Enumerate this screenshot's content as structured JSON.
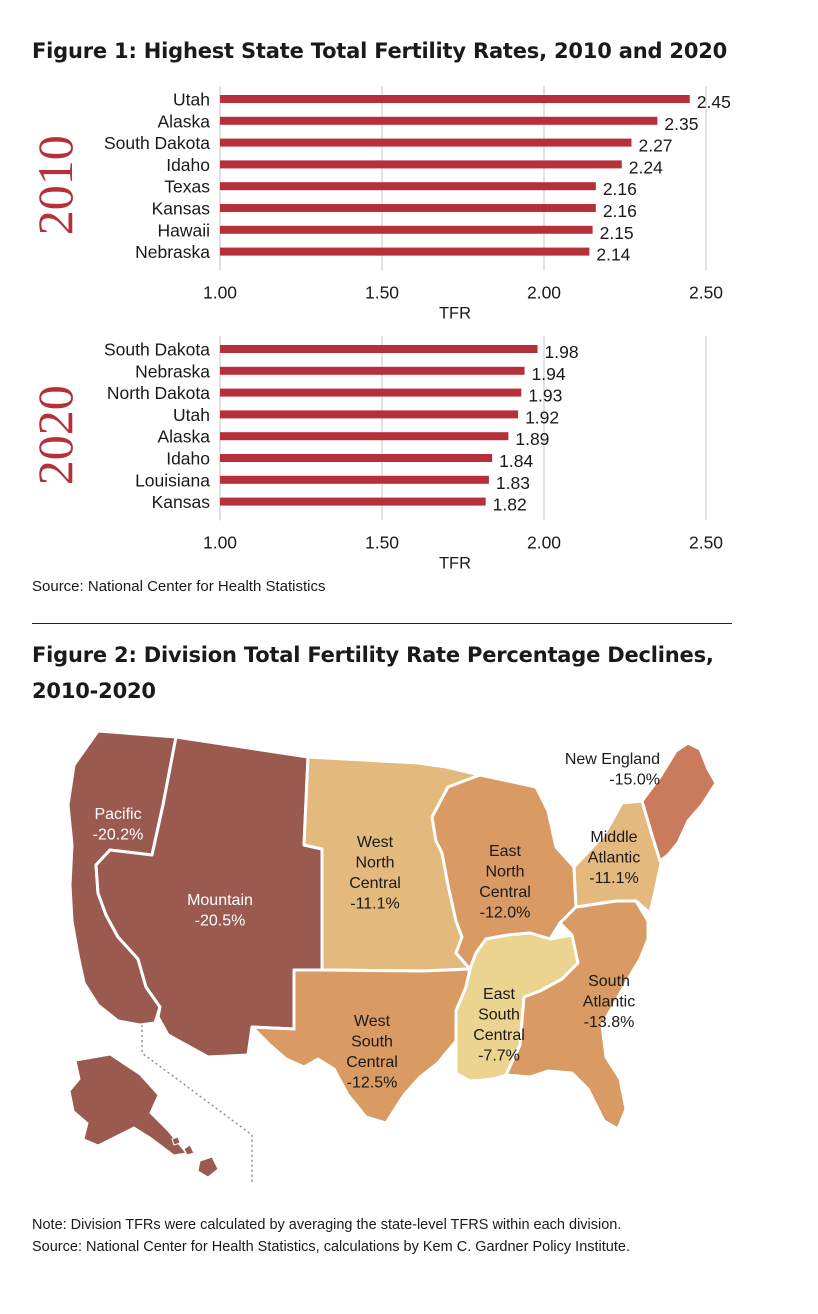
{
  "figure1": {
    "title": "Figure 1: Highest State Total Fertility Rates, 2010 and 2020",
    "source": "Source: National Center for Health Statistics"
  },
  "chart_data": [
    {
      "type": "bar",
      "orientation": "horizontal",
      "panel_label": "2010",
      "categories": [
        "Utah",
        "Alaska",
        "South Dakota",
        "Idaho",
        "Texas",
        "Kansas",
        "Hawaii",
        "Nebraska"
      ],
      "values": [
        2.45,
        2.35,
        2.27,
        2.24,
        2.16,
        2.16,
        2.15,
        2.14
      ],
      "value_labels": [
        "2.45",
        "2.35",
        "2.27",
        "2.24",
        "2.16",
        "2.16",
        "2.15",
        "2.14"
      ],
      "xlabel": "TFR",
      "xlim": [
        1.0,
        2.5
      ],
      "xticks": [
        1.0,
        1.5,
        2.0,
        2.5
      ],
      "xtick_labels": [
        "1.00",
        "1.50",
        "2.00",
        "2.50"
      ],
      "color": "#b5303a",
      "grid": true
    },
    {
      "type": "bar",
      "orientation": "horizontal",
      "panel_label": "2020",
      "categories": [
        "South Dakota",
        "Nebraska",
        "North Dakota",
        "Utah",
        "Alaska",
        "Idaho",
        "Louisiana",
        "Kansas"
      ],
      "values": [
        1.98,
        1.94,
        1.93,
        1.92,
        1.89,
        1.84,
        1.83,
        1.82
      ],
      "value_labels": [
        "1.98",
        "1.94",
        "1.93",
        "1.92",
        "1.89",
        "1.84",
        "1.83",
        "1.82"
      ],
      "xlabel": "TFR",
      "xlim": [
        1.0,
        2.5
      ],
      "xticks": [
        1.0,
        1.5,
        2.0,
        2.5
      ],
      "xtick_labels": [
        "1.00",
        "1.50",
        "2.00",
        "2.50"
      ],
      "color": "#b5303a",
      "grid": true
    }
  ],
  "figure2": {
    "title_line1": "Figure 2: Division Total Fertility Rate Percentage Declines,",
    "title_line2": "2010-2020",
    "divisions": [
      {
        "id": "pacific",
        "lines": [
          "Pacific",
          "-20.2%"
        ],
        "value": -20.2,
        "color": "#9b5a50",
        "text_color": "#ffffff"
      },
      {
        "id": "mountain",
        "lines": [
          "Mountain",
          "-20.5%"
        ],
        "value": -20.5,
        "color": "#9b5a50",
        "text_color": "#ffffff"
      },
      {
        "id": "west-north-central",
        "lines": [
          "West",
          "North",
          "Central",
          "-11.1%"
        ],
        "value": -11.1,
        "color": "#e3b97e",
        "text_color": "#1a1a1a"
      },
      {
        "id": "west-south-central",
        "lines": [
          "West",
          "South",
          "Central",
          "-12.5%"
        ],
        "value": -12.5,
        "color": "#d99a63",
        "text_color": "#1a1a1a"
      },
      {
        "id": "east-north-central",
        "lines": [
          "East",
          "North",
          "Central",
          "-12.0%"
        ],
        "value": -12.0,
        "color": "#d99a63",
        "text_color": "#1a1a1a"
      },
      {
        "id": "east-south-central",
        "lines": [
          "East",
          "South",
          "Central",
          "-7.7%"
        ],
        "value": -7.7,
        "color": "#ead48f",
        "text_color": "#1a1a1a"
      },
      {
        "id": "south-atlantic",
        "lines": [
          "South",
          "Atlantic",
          "-13.8%"
        ],
        "value": -13.8,
        "color": "#d99a63",
        "text_color": "#1a1a1a"
      },
      {
        "id": "middle-atlantic",
        "lines": [
          "Middle",
          "Atlantic",
          "-11.1%"
        ],
        "value": -11.1,
        "color": "#e3b97e",
        "text_color": "#1a1a1a"
      },
      {
        "id": "new-england",
        "lines": [
          "New England",
          "-15.0%"
        ],
        "value": -15.0,
        "color": "#c97b5c",
        "text_color": "#1a1a1a"
      }
    ],
    "note_line1": "Note: Division TFRs were calculated by averaging the state-level TFRS within each division.",
    "note_line2": "Source: National Center for Health Statistics, calculations by Kem C. Gardner Policy Institute."
  }
}
